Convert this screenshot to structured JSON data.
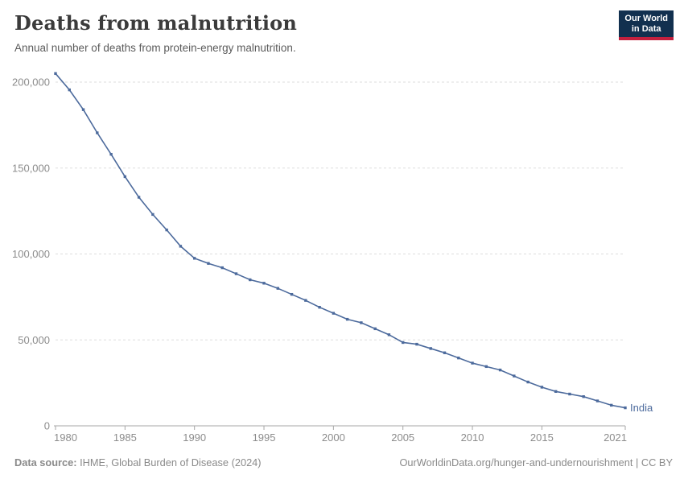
{
  "header": {
    "title": "Deaths from malnutrition",
    "subtitle": "Annual number of deaths from protein-energy malnutrition."
  },
  "logo": {
    "line1": "Our World",
    "line2": "in Data",
    "bg_color": "#12304F",
    "accent_color": "#C4203E",
    "text_color": "#FFFFFF"
  },
  "footer": {
    "source_label": "Data source:",
    "source_text": " IHME, Global Burden of Disease (2024)",
    "credit": "OurWorldinData.org/hunger-and-undernourishment | CC BY"
  },
  "chart_data": {
    "type": "line",
    "title": "Deaths from malnutrition",
    "subtitle": "Annual number of deaths from protein-energy malnutrition.",
    "x": [
      1980,
      1981,
      1982,
      1983,
      1984,
      1985,
      1986,
      1987,
      1988,
      1989,
      1990,
      1991,
      1992,
      1993,
      1994,
      1995,
      1996,
      1997,
      1998,
      1999,
      2000,
      2001,
      2002,
      2003,
      2004,
      2005,
      2006,
      2007,
      2008,
      2009,
      2010,
      2011,
      2012,
      2013,
      2014,
      2015,
      2016,
      2017,
      2018,
      2019,
      2020,
      2021
    ],
    "series": [
      {
        "name": "India",
        "color": "#4C6A9C",
        "values": [
          205000,
          195500,
          184000,
          170500,
          158000,
          145000,
          133000,
          123000,
          114000,
          104500,
          97500,
          94500,
          92000,
          88500,
          85000,
          83000,
          80000,
          76500,
          73000,
          69000,
          65500,
          62000,
          60000,
          56500,
          53000,
          48500,
          47500,
          45000,
          42500,
          39500,
          36500,
          34500,
          32500,
          29000,
          25500,
          22500,
          20000,
          18500,
          17000,
          14500,
          12000,
          10500
        ]
      }
    ],
    "xlabel": "",
    "ylabel": "",
    "ylim": [
      0,
      200000
    ],
    "yticks": [
      0,
      50000,
      100000,
      150000,
      200000
    ],
    "ytick_labels": [
      "0",
      "50,000",
      "100,000",
      "150,000",
      "200,000"
    ],
    "xticks": [
      1980,
      1985,
      1990,
      1995,
      2000,
      2005,
      2010,
      2015,
      2021
    ],
    "grid": true,
    "gridline_style": "dashed",
    "legend_position": "line-end-label",
    "colors": {
      "grid": "#DDDDDD",
      "axis": "#A7A7A7",
      "tick_text": "#8C8C8C"
    }
  }
}
